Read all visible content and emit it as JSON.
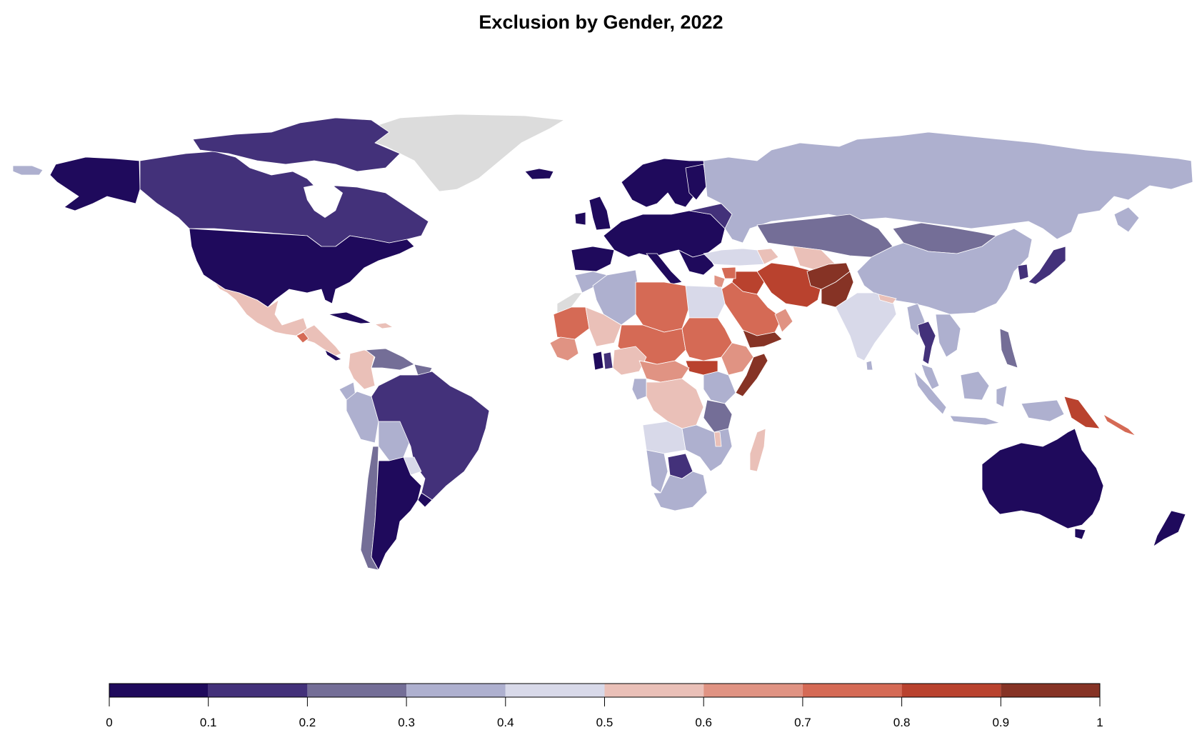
{
  "title": "Exclusion by Gender, 2022",
  "legend": {
    "bins": [
      {
        "from": 0.0,
        "to": 0.1,
        "color": "#1f0a5c"
      },
      {
        "from": 0.1,
        "to": 0.2,
        "color": "#43317a"
      },
      {
        "from": 0.2,
        "to": 0.3,
        "color": "#746e97"
      },
      {
        "from": 0.3,
        "to": 0.4,
        "color": "#aeb0cf"
      },
      {
        "from": 0.4,
        "to": 0.5,
        "color": "#d8d9e9"
      },
      {
        "from": 0.5,
        "to": 0.6,
        "color": "#eac0b8"
      },
      {
        "from": 0.6,
        "to": 0.7,
        "color": "#e09383"
      },
      {
        "from": 0.7,
        "to": 0.8,
        "color": "#d56a55"
      },
      {
        "from": 0.8,
        "to": 0.9,
        "color": "#b9422e"
      },
      {
        "from": 0.9,
        "to": 1.0,
        "color": "#863325"
      }
    ],
    "tick_labels": [
      "0",
      "0.1",
      "0.2",
      "0.3",
      "0.4",
      "0.5",
      "0.6",
      "0.7",
      "0.8",
      "0.9",
      "1"
    ]
  },
  "no_data_color": "#dcdcdc",
  "border_color": "#ffffff"
}
